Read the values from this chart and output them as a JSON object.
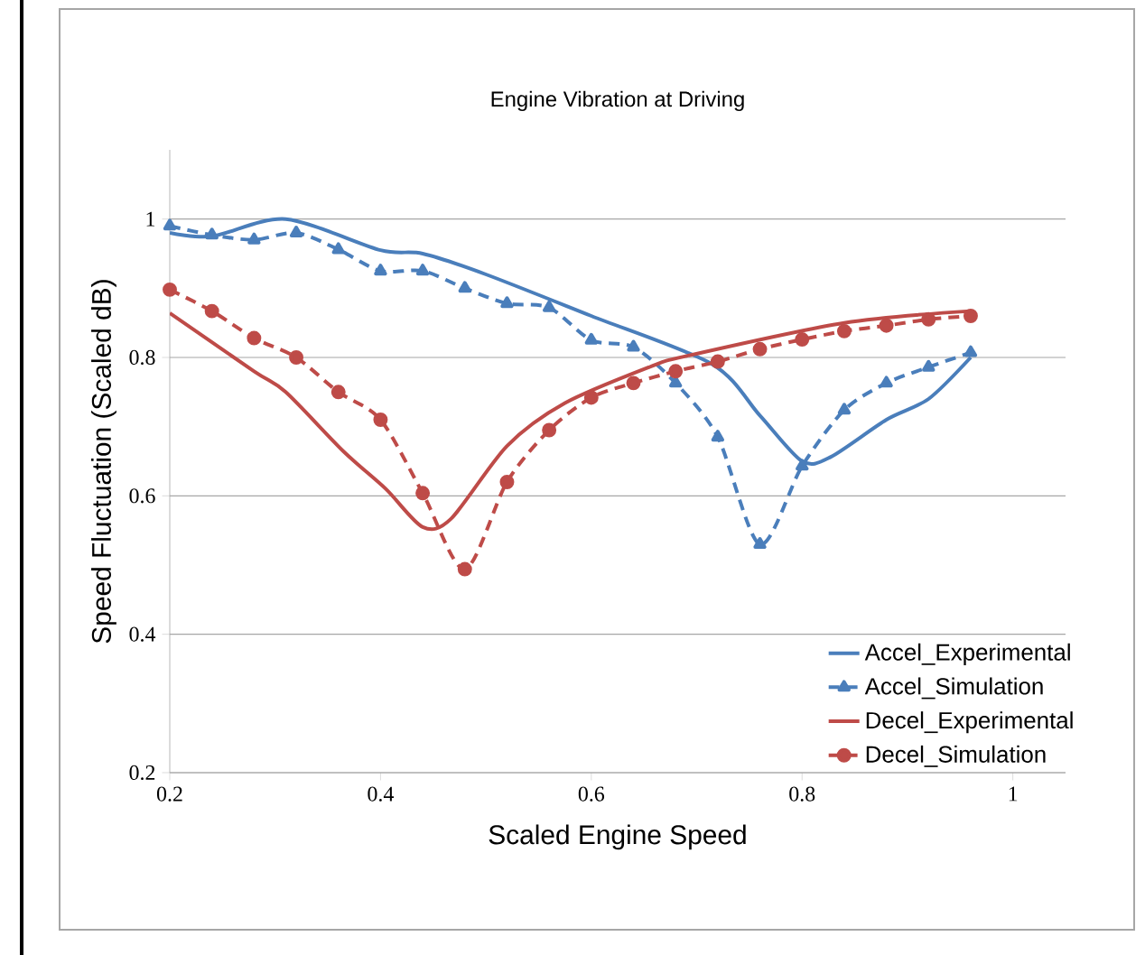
{
  "chart_data": {
    "type": "line",
    "title": "Engine Vibration at Driving",
    "xlabel": "Scaled Engine Speed",
    "ylabel": "Speed Fluctuation (Scaled dB)",
    "xlim": [
      0.2,
      1.05
    ],
    "ylim": [
      0.2,
      1.1
    ],
    "xticks": [
      0.2,
      0.4,
      0.6,
      0.8,
      1
    ],
    "yticks": [
      0.2,
      0.4,
      0.6,
      0.8,
      1
    ],
    "grid": "y",
    "legend": "bottom right",
    "series": [
      {
        "name": "Accel_Experimental",
        "color": "#4a7ebb",
        "line_style": "solid",
        "marker": "none",
        "x": [
          0.2,
          0.24,
          0.31,
          0.4,
          0.44,
          0.5,
          0.6,
          0.715,
          0.76,
          0.8,
          0.827,
          0.88,
          0.92,
          0.96
        ],
        "values": [
          0.98,
          0.975,
          1.0,
          0.955,
          0.95,
          0.92,
          0.86,
          0.79,
          0.716,
          0.65,
          0.656,
          0.71,
          0.74,
          0.8
        ]
      },
      {
        "name": "Accel_Simulation",
        "color": "#4a7ebb",
        "line_style": "dashed",
        "marker": "triangle",
        "x": [
          0.2,
          0.24,
          0.28,
          0.32,
          0.36,
          0.4,
          0.44,
          0.48,
          0.52,
          0.56,
          0.6,
          0.64,
          0.68,
          0.72,
          0.76,
          0.8,
          0.84,
          0.88,
          0.92,
          0.96
        ],
        "values": [
          0.99,
          0.977,
          0.97,
          0.98,
          0.956,
          0.925,
          0.925,
          0.9,
          0.878,
          0.872,
          0.825,
          0.815,
          0.763,
          0.685,
          0.53,
          0.643,
          0.724,
          0.763,
          0.786,
          0.807
        ]
      },
      {
        "name": "Decel_Experimental",
        "color": "#be4b48",
        "line_style": "solid",
        "marker": "none",
        "x": [
          0.2,
          0.28,
          0.31,
          0.365,
          0.405,
          0.44,
          0.467,
          0.52,
          0.575,
          0.655,
          0.69,
          0.84,
          0.96
        ],
        "values": [
          0.864,
          0.78,
          0.75,
          0.664,
          0.61,
          0.555,
          0.567,
          0.672,
          0.734,
          0.786,
          0.802,
          0.85,
          0.867
        ]
      },
      {
        "name": "Decel_Simulation",
        "color": "#be4b48",
        "line_style": "dashed",
        "marker": "circle",
        "x": [
          0.2,
          0.24,
          0.28,
          0.32,
          0.36,
          0.4,
          0.44,
          0.48,
          0.52,
          0.56,
          0.6,
          0.64,
          0.68,
          0.72,
          0.76,
          0.8,
          0.84,
          0.88,
          0.92,
          0.96
        ],
        "values": [
          0.898,
          0.867,
          0.828,
          0.8,
          0.75,
          0.71,
          0.604,
          0.494,
          0.62,
          0.695,
          0.742,
          0.763,
          0.78,
          0.794,
          0.812,
          0.826,
          0.838,
          0.846,
          0.855,
          0.86
        ]
      }
    ]
  }
}
